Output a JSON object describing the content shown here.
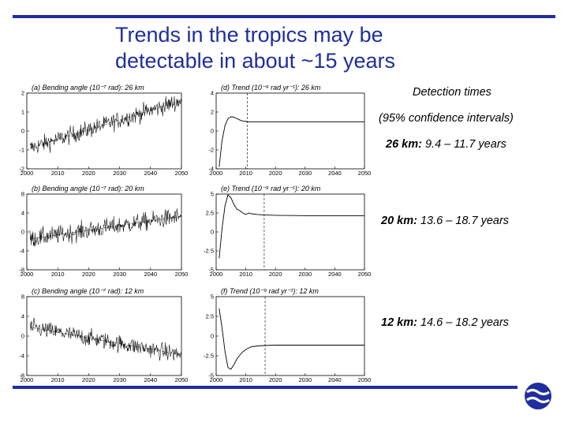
{
  "title": {
    "line1": "Trends in the tropics may be",
    "line2": "detectable in about ~15 years"
  },
  "detection": {
    "heading": "Detection times",
    "subheading": "(95% confidence intervals)",
    "items": [
      {
        "key": "26 km:",
        "value": "9.4 – 11.7 years"
      },
      {
        "key": "20 km:",
        "value": "13.6 – 18.7 years"
      },
      {
        "key": "12 km:",
        "value": "14.6 – 18.2 years"
      }
    ]
  },
  "colors": {
    "accent": "#1f2e9e",
    "line": "#000000",
    "logo": "#1f2e9e"
  },
  "logo_icon": "ecmwf-logo-icon",
  "chart_data": [
    {
      "type": "line",
      "title": "(a) Bending angle (10⁻⁷ rad): 26 km",
      "xlim": [
        2000,
        2050
      ],
      "ylim": [
        -2,
        2
      ],
      "xticks": [
        2000,
        2010,
        2020,
        2030,
        2040,
        2050
      ],
      "xtick_labels": [
        "2000",
        "2010",
        "2020",
        "2030",
        "2040",
        "2050"
      ],
      "yticks": [
        -2,
        -1,
        0,
        1,
        2
      ],
      "ytick_labels": [
        "-2",
        "-1",
        "0",
        "1",
        "2"
      ],
      "series": [
        {
          "x_start": 2001,
          "x_end": 2050,
          "trend_start": -0.9,
          "trend_end": 1.6,
          "noise": 0.45
        }
      ]
    },
    {
      "type": "line",
      "title": "(d) Trend (10⁻⁹ rad yr⁻¹): 26 km",
      "xlim": [
        2000,
        2050
      ],
      "ylim": [
        -4,
        4
      ],
      "xticks": [
        2000,
        2010,
        2020,
        2030,
        2040,
        2050
      ],
      "xtick_labels": [
        "2000",
        "2010",
        "2020",
        "2030",
        "2040",
        "2050"
      ],
      "yticks": [
        -4,
        -2,
        0,
        2,
        4
      ],
      "ytick_labels": [
        "-4",
        "-2",
        "0",
        "2",
        "4"
      ],
      "detection_year": 2010.5,
      "series": [
        {
          "x": [
            2001,
            2002,
            2003,
            2004,
            2005,
            2006,
            2007,
            2008,
            2009,
            2010,
            2011,
            2013,
            2015,
            2020,
            2030,
            2040,
            2050
          ],
          "y": [
            -3.8,
            -1.0,
            0.6,
            1.3,
            1.5,
            1.45,
            1.3,
            1.15,
            1.05,
            1.0,
            0.95,
            0.95,
            0.95,
            0.95,
            0.95,
            0.95,
            0.95
          ]
        }
      ]
    },
    {
      "type": "line",
      "title": "(b) Bending angle (10⁻⁷ rad): 20 km",
      "xlim": [
        2000,
        2050
      ],
      "ylim": [
        -8,
        8
      ],
      "xticks": [
        2000,
        2010,
        2020,
        2030,
        2040,
        2050
      ],
      "xtick_labels": [
        "2000",
        "2010",
        "2020",
        "2030",
        "2040",
        "2050"
      ],
      "yticks": [
        -8,
        -4,
        0,
        4,
        8
      ],
      "ytick_labels": [
        "-8",
        "-4",
        "0",
        "4",
        "8"
      ],
      "series": [
        {
          "x_start": 2001,
          "x_end": 2050,
          "trend_start": -1.5,
          "trend_end": 3.3,
          "noise": 1.9
        }
      ]
    },
    {
      "type": "line",
      "title": "(e) Trend (10⁻⁹ rad yr⁻¹): 20 km",
      "xlim": [
        2000,
        2050
      ],
      "ylim": [
        -5,
        5
      ],
      "xticks": [
        2000,
        2010,
        2020,
        2030,
        2040,
        2050
      ],
      "xtick_labels": [
        "2000",
        "2010",
        "2020",
        "2030",
        "2040",
        "2050"
      ],
      "yticks": [
        -5,
        -2.5,
        0,
        2.5,
        5
      ],
      "ytick_labels": [
        "-5",
        "-2.5",
        "0",
        "2.5",
        "5"
      ],
      "detection_year": 2016.2,
      "series": [
        {
          "x": [
            2001,
            2002,
            2003,
            2004,
            2005,
            2006,
            2007,
            2008,
            2009,
            2010,
            2011,
            2012,
            2014,
            2016,
            2020,
            2030,
            2040,
            2050
          ],
          "y": [
            -3.5,
            0.5,
            3.5,
            4.9,
            4.5,
            3.6,
            3.0,
            2.8,
            2.5,
            2.3,
            2.5,
            2.4,
            2.3,
            2.25,
            2.2,
            2.15,
            2.15,
            2.15
          ]
        }
      ]
    },
    {
      "type": "line",
      "title": "(c) Bending angle (10⁻⁷ rad): 12 km",
      "xlim": [
        2000,
        2050
      ],
      "ylim": [
        -8,
        8
      ],
      "xticks": [
        2000,
        2010,
        2020,
        2030,
        2040,
        2050
      ],
      "xtick_labels": [
        "2000",
        "2010",
        "2020",
        "2030",
        "2040",
        "2050"
      ],
      "yticks": [
        -8,
        -4,
        0,
        4,
        8
      ],
      "ytick_labels": [
        "-8",
        "-4",
        "0",
        "4",
        "8"
      ],
      "series": [
        {
          "x_start": 2001,
          "x_end": 2050,
          "trend_start": 1.8,
          "trend_end": -3.8,
          "noise": 1.7
        }
      ]
    },
    {
      "type": "line",
      "title": "(f) Trend (10⁻⁹ rad yr⁻¹): 12 km",
      "xlim": [
        2000,
        2050
      ],
      "ylim": [
        -5,
        5
      ],
      "xticks": [
        2000,
        2010,
        2020,
        2030,
        2040,
        2050
      ],
      "xtick_labels": [
        "2000",
        "2010",
        "2020",
        "2030",
        "2040",
        "2050"
      ],
      "yticks": [
        -5,
        -2.5,
        0,
        2.5,
        5
      ],
      "ytick_labels": [
        "-5",
        "-2.5",
        "0",
        "2.5",
        "5"
      ],
      "detection_year": 2016.5,
      "series": [
        {
          "x": [
            2001,
            2002,
            2003,
            2004,
            2005,
            2006,
            2007,
            2008,
            2009,
            2010,
            2011,
            2012,
            2014,
            2016,
            2020,
            2030,
            2040,
            2050
          ],
          "y": [
            3.5,
            1.0,
            -2.0,
            -4.0,
            -4.2,
            -3.6,
            -2.9,
            -2.4,
            -2.0,
            -1.7,
            -1.5,
            -1.35,
            -1.25,
            -1.2,
            -1.15,
            -1.15,
            -1.15,
            -1.15
          ]
        }
      ]
    }
  ]
}
